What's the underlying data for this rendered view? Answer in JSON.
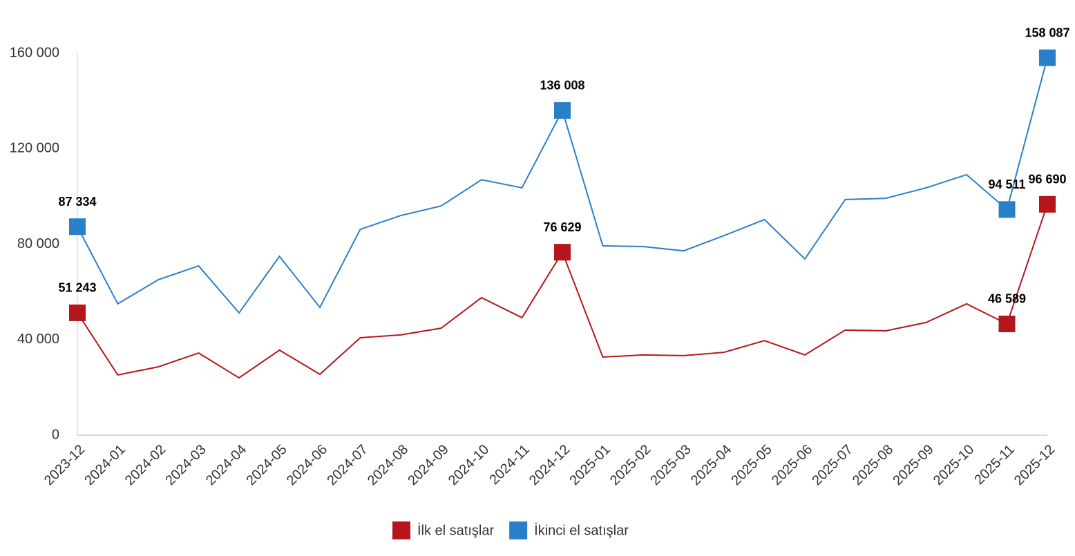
{
  "chart_data": {
    "type": "line",
    "categories": [
      "2023-12",
      "2024-01",
      "2024-02",
      "2024-03",
      "2024-04",
      "2024-05",
      "2024-06",
      "2024-07",
      "2024-08",
      "2024-09",
      "2024-10",
      "2024-11",
      "2024-12",
      "2025-01",
      "2025-02",
      "2025-03",
      "2025-04",
      "2025-05",
      "2025-06",
      "2025-07",
      "2025-08",
      "2025-09",
      "2025-10",
      "2025-11",
      "2025-12"
    ],
    "series": [
      {
        "name": "İlk el satışlar",
        "color": "#b5161b",
        "values": [
          51243,
          25200,
          28600,
          34400,
          24000,
          35600,
          25500,
          40800,
          42000,
          44800,
          57600,
          49200,
          76629,
          32700,
          33600,
          33300,
          34700,
          39600,
          33600,
          44000,
          43700,
          47200,
          55000,
          46589,
          96690
        ],
        "value_labels": [
          "51 243",
          null,
          null,
          null,
          null,
          null,
          null,
          null,
          null,
          null,
          null,
          null,
          "76 629",
          null,
          null,
          null,
          null,
          null,
          null,
          null,
          null,
          null,
          null,
          "46 589",
          "96 690"
        ]
      },
      {
        "name": "İkinci el satışlar",
        "color": "#2a7fc9",
        "values": [
          87334,
          55000,
          65100,
          70900,
          51200,
          74900,
          53500,
          86200,
          92000,
          96000,
          107000,
          103600,
          136008,
          79300,
          79000,
          77200,
          83600,
          90300,
          73800,
          98700,
          99200,
          103600,
          109100,
          94511,
          158087
        ],
        "value_labels": [
          "87 334",
          null,
          null,
          null,
          null,
          null,
          null,
          null,
          null,
          null,
          null,
          null,
          "136 008",
          null,
          null,
          null,
          null,
          null,
          null,
          null,
          null,
          null,
          null,
          "94 511",
          "158 087"
        ]
      }
    ],
    "ylim": [
      0,
      160000
    ],
    "yticks": [
      0,
      {
        "value": 40000,
        "label": "40 000"
      },
      {
        "value": 80000,
        "label": "80 000"
      },
      {
        "value": 120000,
        "label": "120 000"
      },
      {
        "value": 160000,
        "label": "160 000"
      }
    ],
    "grid": false,
    "legend": "bottom"
  }
}
